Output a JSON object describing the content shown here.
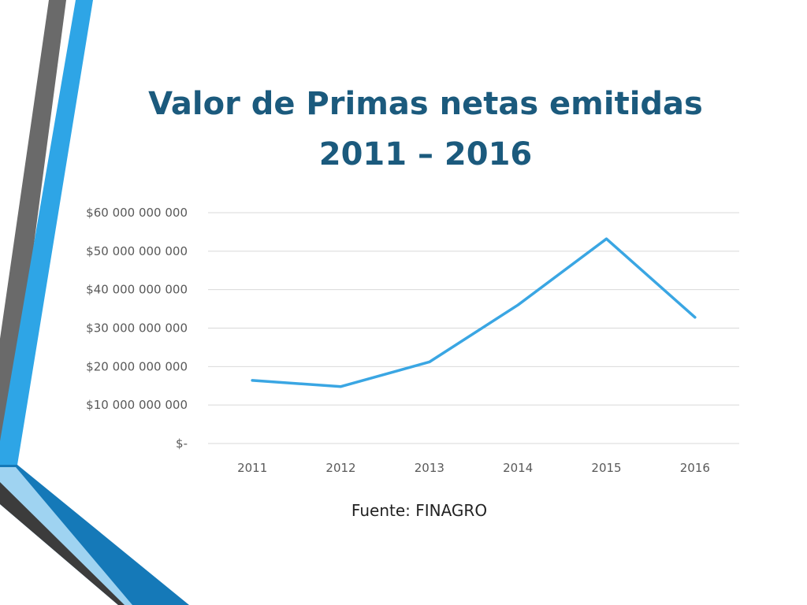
{
  "slide": {
    "title_line1": "Valor de Primas netas emitidas",
    "title_line2": "2011 – 2016",
    "source": "Fuente: FINAGRO"
  },
  "colors": {
    "title": "#1b5a7d",
    "series": "#3aa6e3",
    "grid": "#d9d9d9",
    "decor_blue": "#2ea5e6",
    "decor_dark_blue": "#1579b8",
    "decor_gray": "#6a6a6a",
    "decor_dark": "#3c3c3c"
  },
  "chart_data": {
    "type": "line",
    "categories": [
      "2011",
      "2012",
      "2013",
      "2014",
      "2015",
      "2016"
    ],
    "series": [
      {
        "values": [
          16400000000,
          14800000000,
          21200000000,
          36000000000,
          53200000000,
          32800000000
        ]
      }
    ],
    "ylim": [
      0,
      60000000000
    ],
    "yticks": [
      0,
      10000000000,
      20000000000,
      30000000000,
      40000000000,
      50000000000,
      60000000000
    ],
    "ytick_labels": [
      "$-",
      "$10 000 000 000",
      "$20 000 000 000",
      "$30 000 000 000",
      "$40 000 000 000",
      "$50 000 000 000",
      "$60 000 000 000"
    ],
    "grid": true,
    "legend": "none"
  }
}
